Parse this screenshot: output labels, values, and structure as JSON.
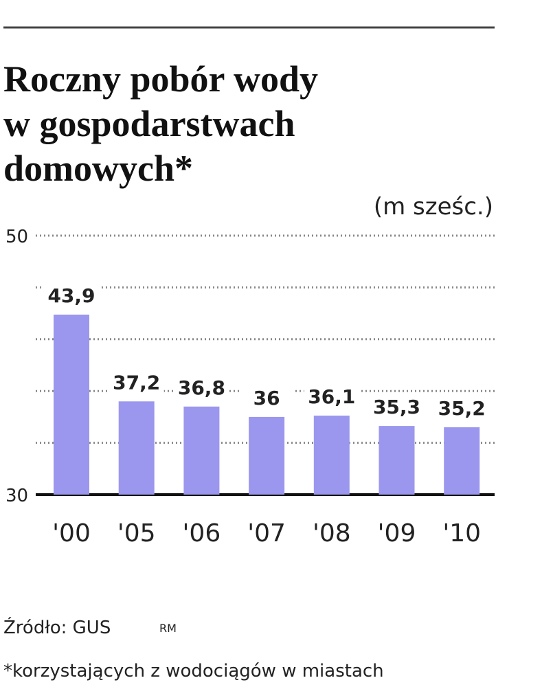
{
  "chart_data": {
    "type": "bar",
    "title": [
      "Roczny pobór wody",
      "w gospodarstwach",
      "domowych*"
    ],
    "unit": "(m sześc.)",
    "categories": [
      "'00",
      "'05",
      "'06",
      "'07",
      "'08",
      "'09",
      "'10"
    ],
    "values": [
      43.9,
      37.2,
      36.8,
      36,
      36.1,
      35.3,
      35.2
    ],
    "value_labels": [
      "43,9",
      "37,2",
      "36,8",
      "36",
      "36,1",
      "35,3",
      "35,2"
    ],
    "color": "#9b97ee",
    "ylim": [
      30,
      50
    ],
    "yticks": [
      30,
      50
    ],
    "minor_yticks": [
      34,
      38,
      42,
      46
    ],
    "grid": true,
    "source": "Źródło: GUS",
    "author": "RM",
    "footnote": "*korzystających z wodociągów w miastach"
  }
}
